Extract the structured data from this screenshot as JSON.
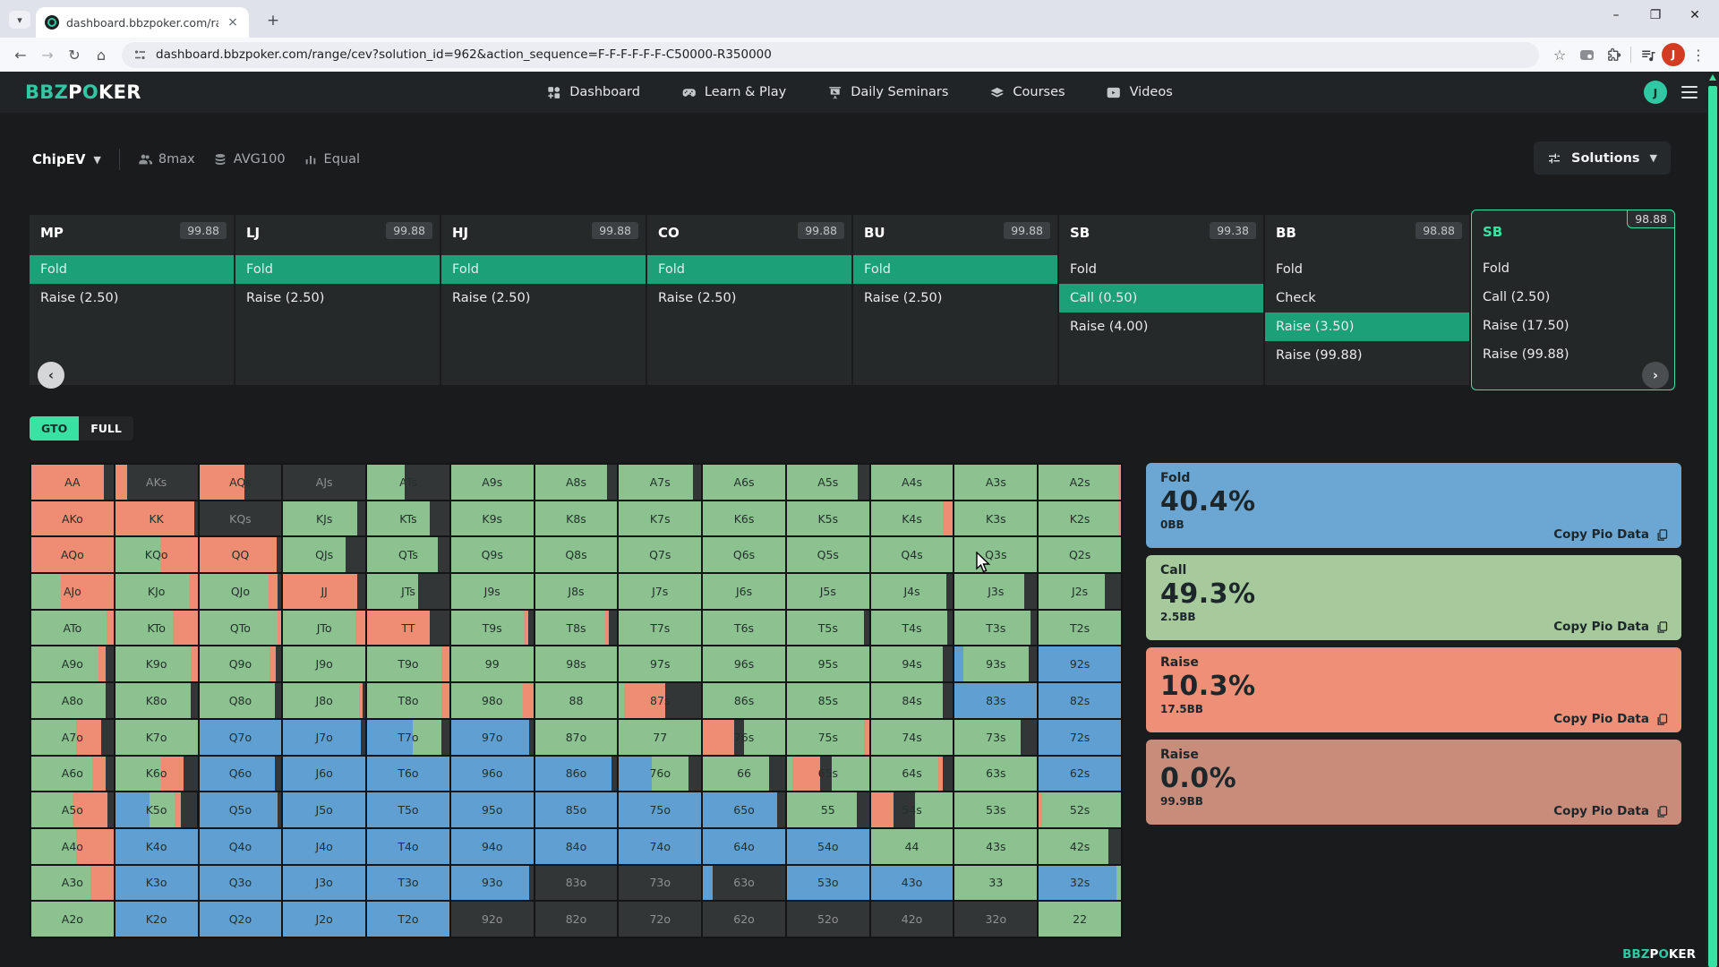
{
  "browser": {
    "tab_title": "dashboard.bbzpoker.com/rang",
    "url": "dashboard.bbzpoker.com/range/cev?solution_id=962&action_sequence=F-F-F-F-F-F-C50000-R350000",
    "profile_initial": "J",
    "new_tab_label": "+",
    "close_tab_label": "×"
  },
  "header": {
    "logo_bbz": "BBZ",
    "logo_p": "P",
    "logo_o": "O",
    "logo_ker": "KER",
    "nav": [
      {
        "label": "Dashboard",
        "icon": "grid"
      },
      {
        "label": "Learn & Play",
        "icon": "gamepad"
      },
      {
        "label": "Daily Seminars",
        "icon": "board"
      },
      {
        "label": "Courses",
        "icon": "stack"
      },
      {
        "label": "Videos",
        "icon": "video"
      }
    ],
    "avatar_initial": "J"
  },
  "filters": {
    "solution_type": "ChipEV",
    "table_size": "8max",
    "stack_depth": "AVG100",
    "format": "Equal",
    "solutions_label": "Solutions"
  },
  "positions": [
    {
      "pos": "MP",
      "ev": "99.88",
      "active": false,
      "actions": [
        {
          "label": "Fold",
          "selected": true
        },
        {
          "label": "Raise (2.50)",
          "selected": false
        }
      ]
    },
    {
      "pos": "LJ",
      "ev": "99.88",
      "active": false,
      "actions": [
        {
          "label": "Fold",
          "selected": true
        },
        {
          "label": "Raise (2.50)",
          "selected": false
        }
      ]
    },
    {
      "pos": "HJ",
      "ev": "99.88",
      "active": false,
      "actions": [
        {
          "label": "Fold",
          "selected": true
        },
        {
          "label": "Raise (2.50)",
          "selected": false
        }
      ]
    },
    {
      "pos": "CO",
      "ev": "99.88",
      "active": false,
      "actions": [
        {
          "label": "Fold",
          "selected": true
        },
        {
          "label": "Raise (2.50)",
          "selected": false
        }
      ]
    },
    {
      "pos": "BU",
      "ev": "99.88",
      "active": false,
      "actions": [
        {
          "label": "Fold",
          "selected": true
        },
        {
          "label": "Raise (2.50)",
          "selected": false
        }
      ]
    },
    {
      "pos": "SB",
      "ev": "99.38",
      "active": false,
      "actions": [
        {
          "label": "Fold",
          "selected": false
        },
        {
          "label": "Call (0.50)",
          "selected": true
        },
        {
          "label": "Raise (4.00)",
          "selected": false
        }
      ]
    },
    {
      "pos": "BB",
      "ev": "98.88",
      "active": false,
      "actions": [
        {
          "label": "Fold",
          "selected": false
        },
        {
          "label": "Check",
          "selected": false
        },
        {
          "label": "Raise (3.50)",
          "selected": true
        },
        {
          "label": "Raise (99.88)",
          "selected": false
        }
      ]
    },
    {
      "pos": "SB",
      "ev": "98.88",
      "active": true,
      "actions": [
        {
          "label": "Fold",
          "selected": false
        },
        {
          "label": "Call (2.50)",
          "selected": false
        },
        {
          "label": "Raise (17.50)",
          "selected": false
        },
        {
          "label": "Raise (99.88)",
          "selected": false
        }
      ]
    }
  ],
  "toggle": {
    "gto": "GTO",
    "full": "FULL"
  },
  "chart_data": {
    "type": "heatmap",
    "legend": {
      "g": "call",
      "b": "fold",
      "r": "raise",
      "d": "not-in-range"
    },
    "rows": [
      [
        [
          "AA",
          "r88,d12"
        ],
        [
          "AKs",
          "r14,d86"
        ],
        [
          "AQs",
          "r55,d45"
        ],
        [
          "AJs",
          "d100"
        ],
        [
          "ATs",
          "g46,d54"
        ],
        [
          "A9s",
          "g100"
        ],
        [
          "A8s",
          "g88,d12"
        ],
        [
          "A7s",
          "g90,d10"
        ],
        [
          "A6s",
          "g100"
        ],
        [
          "A5s",
          "g86,d14"
        ],
        [
          "A4s",
          "g100"
        ],
        [
          "A3s",
          "g100"
        ],
        [
          "A2s",
          "g97,r3"
        ]
      ],
      [
        [
          "AKo",
          "r100"
        ],
        [
          "KK",
          "r96,d4"
        ],
        [
          "KQs",
          "d100"
        ],
        [
          "KJs",
          "g90,d10"
        ],
        [
          "KTs",
          "g76,d24"
        ],
        [
          "K9s",
          "g100"
        ],
        [
          "K8s",
          "g100"
        ],
        [
          "K7s",
          "g100"
        ],
        [
          "K6s",
          "g100"
        ],
        [
          "K5s",
          "g100"
        ],
        [
          "K4s",
          "g87,r13"
        ],
        [
          "K3s",
          "g100"
        ],
        [
          "K2s",
          "g97,r3"
        ]
      ],
      [
        [
          "AQo",
          "r100"
        ],
        [
          "KQo",
          "g55,r45"
        ],
        [
          "QQ",
          "r94,d6"
        ],
        [
          "QJs",
          "g76,d24"
        ],
        [
          "QTs",
          "g86,d14"
        ],
        [
          "Q9s",
          "g100"
        ],
        [
          "Q8s",
          "g100"
        ],
        [
          "Q7s",
          "g100"
        ],
        [
          "Q6s",
          "g100"
        ],
        [
          "Q5s",
          "g100"
        ],
        [
          "Q4s",
          "g100"
        ],
        [
          "Q3s",
          "g100"
        ],
        [
          "Q2s",
          "g100"
        ]
      ],
      [
        [
          "AJo",
          "g36,r64"
        ],
        [
          "KJo",
          "g90,r10"
        ],
        [
          "QJo",
          "g84,r11,d5"
        ],
        [
          "JJ",
          "r90,d10"
        ],
        [
          "JTs",
          "g62,d38"
        ],
        [
          "J9s",
          "g100"
        ],
        [
          "J8s",
          "g100"
        ],
        [
          "J7s",
          "g100"
        ],
        [
          "J6s",
          "g100"
        ],
        [
          "J5s",
          "g100"
        ],
        [
          "J4s",
          "g92,d8"
        ],
        [
          "J3s",
          "g85,d15"
        ],
        [
          "J2s",
          "g80,d20"
        ]
      ],
      [
        [
          "ATo",
          "g92,r8"
        ],
        [
          "KTo",
          "g70,r30"
        ],
        [
          "QTo",
          "g95,r5"
        ],
        [
          "JTo",
          "g88,r12"
        ],
        [
          "TT",
          "r76,d24"
        ],
        [
          "T9s",
          "g88,r6,d6"
        ],
        [
          "T8s",
          "g85,r5,d10"
        ],
        [
          "T7s",
          "g100"
        ],
        [
          "T6s",
          "g100"
        ],
        [
          "T5s",
          "g94,d6"
        ],
        [
          "T4s",
          "g93,d7"
        ],
        [
          "T3s",
          "g92,d8"
        ],
        [
          "T2s",
          "g100"
        ]
      ],
      [
        [
          "A9o",
          "g82,r8,d10"
        ],
        [
          "K9o",
          "g92,r8"
        ],
        [
          "Q9o",
          "g85,r8,d7"
        ],
        [
          "J9o",
          "g100"
        ],
        [
          "T9o",
          "g90,r10"
        ],
        [
          "99",
          "g100"
        ],
        [
          "98s",
          "g100"
        ],
        [
          "97s",
          "g100"
        ],
        [
          "96s",
          "g100"
        ],
        [
          "95s",
          "g100"
        ],
        [
          "94s",
          "g88,d12"
        ],
        [
          "93s",
          "b10,g80,d10"
        ],
        [
          "92s",
          "b100"
        ]
      ],
      [
        [
          "A8o",
          "g90,d10"
        ],
        [
          "K8o",
          "g92,d8"
        ],
        [
          "Q8o",
          "g92,d8"
        ],
        [
          "J8o",
          "g92,r5,d3"
        ],
        [
          "T8o",
          "g90,r10"
        ],
        [
          "98o",
          "g87,r13"
        ],
        [
          "88",
          "g100"
        ],
        [
          "87s",
          "g6,r50,d44"
        ],
        [
          "86s",
          "g100"
        ],
        [
          "85s",
          "g100"
        ],
        [
          "84s",
          "g88,d12"
        ],
        [
          "83s",
          "b100"
        ],
        [
          "82s",
          "b100"
        ]
      ],
      [
        [
          "A7o",
          "g55,r30,d15"
        ],
        [
          "K7o",
          "g100"
        ],
        [
          "Q7o",
          "b100"
        ],
        [
          "J7o",
          "b95,d5"
        ],
        [
          "T7o",
          "b55,g35,d10"
        ],
        [
          "97o",
          "b95,d5"
        ],
        [
          "87o",
          "g100"
        ],
        [
          "77",
          "g100"
        ],
        [
          "76s",
          "r38,d12,g50"
        ],
        [
          "75s",
          "g94,r6"
        ],
        [
          "74s",
          "g100"
        ],
        [
          "73s",
          "g80,d20"
        ],
        [
          "72s",
          "b100"
        ]
      ],
      [
        [
          "A6o",
          "g74,r16,d10"
        ],
        [
          "K6o",
          "g56,r27,d17"
        ],
        [
          "Q6o",
          "b92,d8"
        ],
        [
          "J6o",
          "b100"
        ],
        [
          "T6o",
          "b100"
        ],
        [
          "96o",
          "b100"
        ],
        [
          "86o",
          "b93,d7"
        ],
        [
          "76o",
          "b40,g45,d15"
        ],
        [
          "66",
          "g80,d20"
        ],
        [
          "65s",
          "g7,r33,d15,g45"
        ],
        [
          "64s",
          "g82,r6,d12"
        ],
        [
          "63s",
          "g100"
        ],
        [
          "62s",
          "b100"
        ]
      ],
      [
        [
          "A5o",
          "g50,r43,d7"
        ],
        [
          "K5o",
          "b42,g30,r8,d20"
        ],
        [
          "Q5o",
          "b95,d5"
        ],
        [
          "J5o",
          "b100"
        ],
        [
          "T5o",
          "b100"
        ],
        [
          "95o",
          "b100"
        ],
        [
          "85o",
          "b100"
        ],
        [
          "75o",
          "b100"
        ],
        [
          "65o",
          "b90,d10"
        ],
        [
          "55",
          "g85,d15"
        ],
        [
          "54s",
          "r28,d26,g46"
        ],
        [
          "53s",
          "g100"
        ],
        [
          "52s",
          "r4,g96"
        ]
      ],
      [
        [
          "A4o",
          "g55,r45"
        ],
        [
          "K4o",
          "b100"
        ],
        [
          "Q4o",
          "b100"
        ],
        [
          "J4o",
          "b100"
        ],
        [
          "T4o",
          "b100"
        ],
        [
          "94o",
          "b100"
        ],
        [
          "84o",
          "b100"
        ],
        [
          "74o",
          "b100"
        ],
        [
          "64o",
          "b100"
        ],
        [
          "54o",
          "b100"
        ],
        [
          "44",
          "g100"
        ],
        [
          "43s",
          "g100"
        ],
        [
          "42s",
          "g85,d15"
        ]
      ],
      [
        [
          "A3o",
          "g72,r28"
        ],
        [
          "K3o",
          "b100"
        ],
        [
          "Q3o",
          "b100"
        ],
        [
          "J3o",
          "b100"
        ],
        [
          "T3o",
          "b100"
        ],
        [
          "93o",
          "b95,d5"
        ],
        [
          "83o",
          "d100"
        ],
        [
          "73o",
          "d100"
        ],
        [
          "63o",
          "b12,d88"
        ],
        [
          "53o",
          "b100"
        ],
        [
          "43o",
          "b100"
        ],
        [
          "33",
          "g100"
        ],
        [
          "32s",
          "b95,g5"
        ]
      ],
      [
        [
          "A2o",
          "g100"
        ],
        [
          "K2o",
          "b100"
        ],
        [
          "Q2o",
          "b100"
        ],
        [
          "J2o",
          "b100"
        ],
        [
          "T2o",
          "b100"
        ],
        [
          "92o",
          "d100"
        ],
        [
          "82o",
          "d100"
        ],
        [
          "72o",
          "d100"
        ],
        [
          "62o",
          "d100"
        ],
        [
          "52o",
          "d100"
        ],
        [
          "42o",
          "d100"
        ],
        [
          "32o",
          "d100"
        ],
        [
          "22",
          "g100"
        ]
      ]
    ]
  },
  "summary": [
    {
      "action": "Fold",
      "pct": "40.4%",
      "bb": "0BB",
      "color_key": "fold",
      "copy_label": "Copy Pio Data"
    },
    {
      "action": "Call",
      "pct": "49.3%",
      "bb": "2.5BB",
      "color_key": "call",
      "copy_label": "Copy Pio Data"
    },
    {
      "action": "Raise",
      "pct": "10.3%",
      "bb": "17.5BB",
      "color_key": "raise",
      "copy_label": "Copy Pio Data"
    },
    {
      "action": "Raise",
      "pct": "0.0%",
      "bb": "99.9BB",
      "color_key": "raise_muted",
      "copy_label": "Copy Pio Data"
    }
  ],
  "colors": {
    "accent_mint": "#38e2a2",
    "action_selected_green": "#1ca077",
    "grid_call_green": "#8cc190",
    "grid_fold_blue": "#5f9fd2",
    "grid_raise_salmon": "#ee8d73",
    "grid_dark": "#333637",
    "fold": "#6ba7d2",
    "call": "#a6ca9c",
    "raise": "#ee9078",
    "raise_muted": "#c78c7a",
    "profile_orange": "#d33c22"
  }
}
